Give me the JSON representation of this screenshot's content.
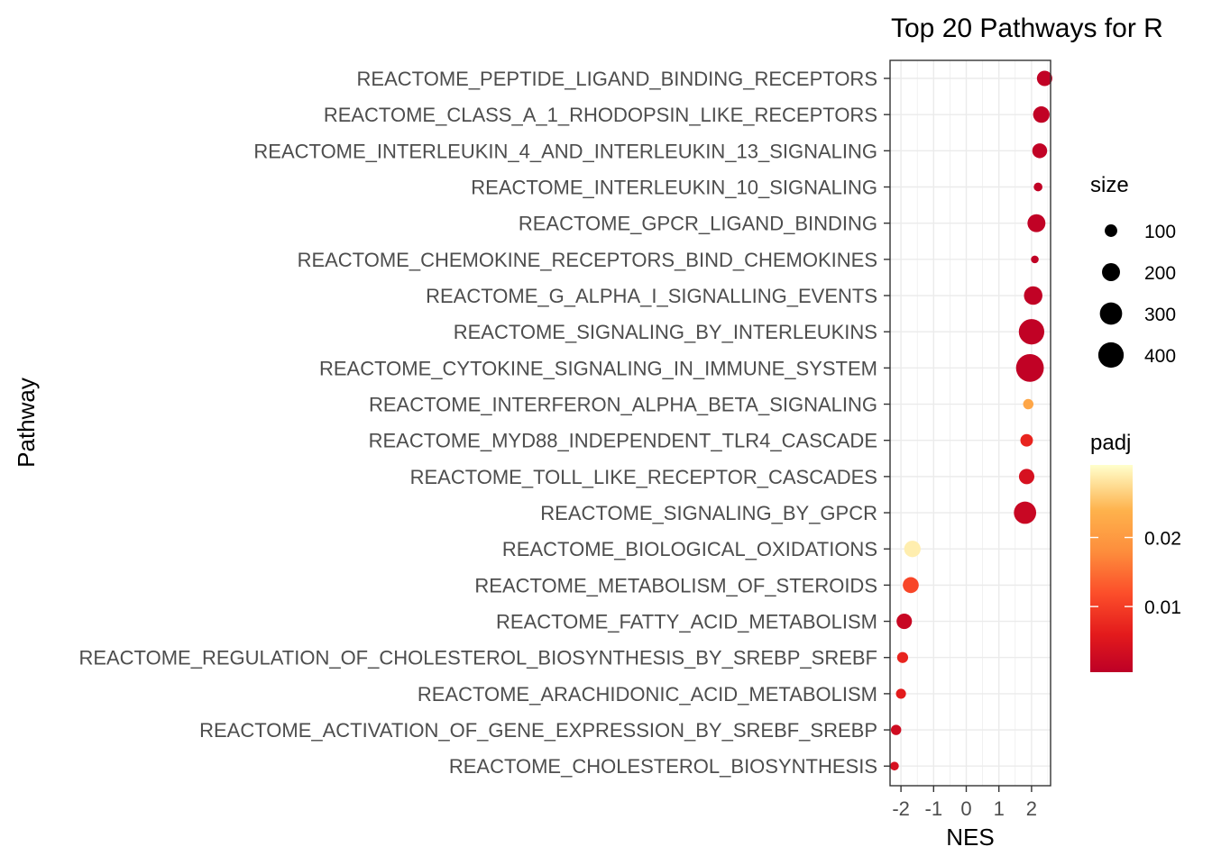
{
  "chart_data": {
    "type": "scatter",
    "title": "Top 20 Pathways for  R",
    "xlabel": "NES",
    "ylabel": "Pathway",
    "xlim": [
      -2.3,
      2.6
    ],
    "x_ticks": [
      -2,
      -1,
      0,
      1,
      2
    ],
    "grid": true,
    "legend_placement": "right",
    "size_legend": {
      "title": "size",
      "entries": [
        {
          "label": "100",
          "value": 100
        },
        {
          "label": "200",
          "value": 200
        },
        {
          "label": "300",
          "value": 300
        },
        {
          "label": "400",
          "value": 400
        }
      ]
    },
    "color_legend": {
      "title": "padj",
      "range": [
        0.0005,
        0.0305
      ],
      "ticks": [
        {
          "label": "0.01",
          "value": 0.01
        },
        {
          "label": "0.02",
          "value": 0.02
        }
      ],
      "colors": {
        "low": "#bd0026",
        "mid_low": "#e31a1c",
        "mid": "#fc4e2a",
        "mid_high": "#fd8d3c",
        "high_mid": "#feb24c",
        "high": "#ffffcc"
      }
    },
    "points": [
      {
        "pathway": "REACTOME_PEPTIDE_LIGAND_BINDING_RECEPTORS",
        "nes": 2.4,
        "size": 150,
        "padj": 0.001
      },
      {
        "pathway": "REACTOME_CLASS_A_1_RHODOPSIN_LIKE_RECEPTORS",
        "nes": 2.3,
        "size": 170,
        "padj": 0.001
      },
      {
        "pathway": "REACTOME_INTERLEUKIN_4_AND_INTERLEUKIN_13_SIGNALING",
        "nes": 2.25,
        "size": 140,
        "padj": 0.001
      },
      {
        "pathway": "REACTOME_INTERLEUKIN_10_SIGNALING",
        "nes": 2.2,
        "size": 40,
        "padj": 0.001
      },
      {
        "pathway": "REACTOME_GPCR_LIGAND_BINDING",
        "nes": 2.15,
        "size": 200,
        "padj": 0.001
      },
      {
        "pathway": "REACTOME_CHEMOKINE_RECEPTORS_BIND_CHEMOKINES",
        "nes": 2.1,
        "size": 25,
        "padj": 0.001
      },
      {
        "pathway": "REACTOME_G_ALPHA_I_SIGNALLING_EVENTS",
        "nes": 2.05,
        "size": 210,
        "padj": 0.001
      },
      {
        "pathway": "REACTOME_SIGNALING_BY_INTERLEUKINS",
        "nes": 2.0,
        "size": 400,
        "padj": 0.001
      },
      {
        "pathway": "REACTOME_CYTOKINE_SIGNALING_IN_IMMUNE_SYSTEM",
        "nes": 1.95,
        "size": 520,
        "padj": 0.001
      },
      {
        "pathway": "REACTOME_INTERFERON_ALPHA_BETA_SIGNALING",
        "nes": 1.9,
        "size": 65,
        "padj": 0.022
      },
      {
        "pathway": "REACTOME_MYD88_INDEPENDENT_TLR4_CASCADE",
        "nes": 1.85,
        "size": 100,
        "padj": 0.007
      },
      {
        "pathway": "REACTOME_TOLL_LIKE_RECEPTOR_CASCADES",
        "nes": 1.85,
        "size": 150,
        "padj": 0.004
      },
      {
        "pathway": "REACTOME_SIGNALING_BY_GPCR",
        "nes": 1.8,
        "size": 300,
        "padj": 0.002
      },
      {
        "pathway": "REACTOME_BIOLOGICAL_OXIDATIONS",
        "nes": -1.65,
        "size": 170,
        "padj": 0.029
      },
      {
        "pathway": "REACTOME_METABOLISM_OF_STEROIDS",
        "nes": -1.7,
        "size": 160,
        "padj": 0.011
      },
      {
        "pathway": "REACTOME_FATTY_ACID_METABOLISM",
        "nes": -1.9,
        "size": 150,
        "padj": 0.002
      },
      {
        "pathway": "REACTOME_REGULATION_OF_CHOLESTEROL_BIOSYNTHESIS_BY_SREBP_SREBF",
        "nes": -1.95,
        "size": 75,
        "padj": 0.007
      },
      {
        "pathway": "REACTOME_ARACHIDONIC_ACID_METABOLISM",
        "nes": -2.0,
        "size": 60,
        "padj": 0.006
      },
      {
        "pathway": "REACTOME_ACTIVATION_OF_GENE_EXPRESSION_BY_SREBF_SREBP",
        "nes": -2.15,
        "size": 65,
        "padj": 0.003
      },
      {
        "pathway": "REACTOME_CHOLESTEROL_BIOSYNTHESIS",
        "nes": -2.2,
        "size": 40,
        "padj": 0.004
      }
    ]
  }
}
